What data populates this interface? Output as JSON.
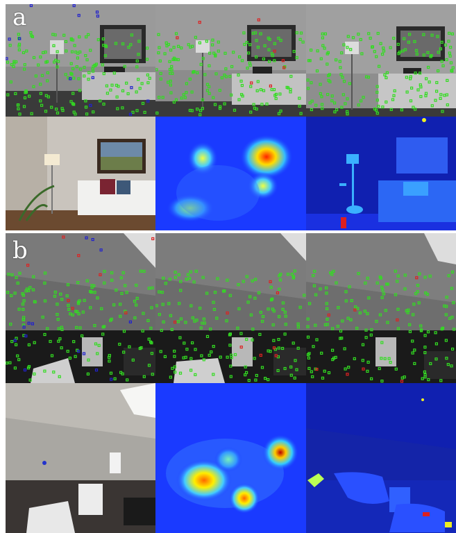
{
  "figure": {
    "panels": [
      {
        "label": "a",
        "rows": [
          [
            "keypoints-view-1",
            "keypoints-view-2",
            "keypoints-view-3"
          ],
          [
            "rgb-image",
            "heatmap",
            "segmentation-map"
          ]
        ]
      },
      {
        "label": "b",
        "rows": [
          [
            "keypoints-view-1",
            "keypoints-view-2",
            "keypoints-view-3"
          ],
          [
            "rgb-image",
            "heatmap",
            "segmentation-map"
          ]
        ]
      }
    ],
    "colors": {
      "keypoint_green": "#33dd22",
      "keypoint_blue": "#2222cc",
      "keypoint_red": "#dd2222",
      "heat_background": "#1a3aff",
      "seg_background": "#1020b0"
    }
  }
}
